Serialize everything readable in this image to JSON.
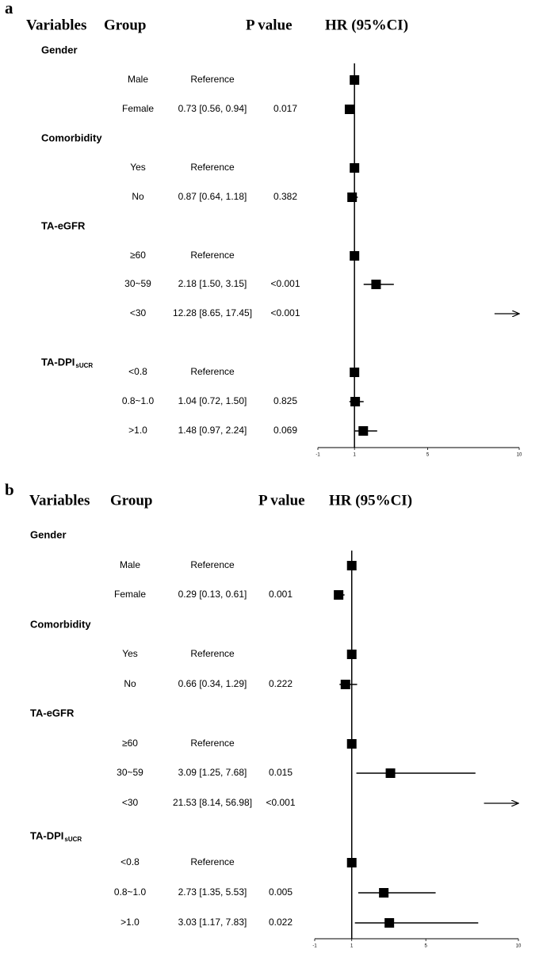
{
  "chart_data": [
    {
      "type": "forest",
      "panel": "a",
      "columns": [
        "Variables",
        "Group",
        "P value",
        "HR (95%CI)"
      ],
      "xlim": [
        -1,
        10
      ],
      "xticks": [
        -1,
        1,
        5,
        10
      ],
      "reference_value": 1,
      "groups": [
        {
          "name": "Gender",
          "rows": [
            {
              "group": "Male",
              "estimate": "Reference",
              "hr": 1
            },
            {
              "group": "Female",
              "estimate": "0.73 [0.56, 0.94]",
              "p": "0.017",
              "hr": 0.73,
              "lo": 0.56,
              "hi": 0.94
            }
          ]
        },
        {
          "name": "Comorbidity",
          "rows": [
            {
              "group": "Yes",
              "estimate": "Reference",
              "hr": 1
            },
            {
              "group": "No",
              "estimate": "0.87 [0.64, 1.18]",
              "p": "0.382",
              "hr": 0.87,
              "lo": 0.64,
              "hi": 1.18
            }
          ]
        },
        {
          "name": "TA-eGFR",
          "rows": [
            {
              "group": "≥60",
              "estimate": "Reference",
              "hr": 1
            },
            {
              "group": "30~59",
              "estimate": "2.18 [1.50, 3.15]",
              "p": "<0.001",
              "hr": 2.18,
              "lo": 1.5,
              "hi": 3.15
            },
            {
              "group": "<30",
              "estimate": "12.28 [8.65, 17.45]",
              "p": "<0.001",
              "hr": 12.28,
              "lo": 8.65,
              "hi": 17.45
            }
          ]
        },
        {
          "name": "TA-DPI",
          "subscript": "sUCR",
          "rows": [
            {
              "group": "<0.8",
              "estimate": "Reference",
              "hr": 1
            },
            {
              "group": "0.8~1.0",
              "estimate": "1.04 [0.72, 1.50]",
              "p": "0.825",
              "hr": 1.04,
              "lo": 0.72,
              "hi": 1.5
            },
            {
              "group": ">1.0",
              "estimate": "1.48 [0.97, 2.24]",
              "p": "0.069",
              "hr": 1.48,
              "lo": 0.97,
              "hi": 2.24
            }
          ]
        }
      ]
    },
    {
      "type": "forest",
      "panel": "b",
      "columns": [
        "Variables",
        "Group",
        "P value",
        "HR (95%CI)"
      ],
      "xlim": [
        -1,
        10
      ],
      "xticks": [
        -1,
        1,
        5,
        10
      ],
      "reference_value": 1,
      "groups": [
        {
          "name": "Gender",
          "rows": [
            {
              "group": "Male",
              "estimate": "Reference",
              "hr": 1
            },
            {
              "group": "Female",
              "estimate": "0.29 [0.13, 0.61]",
              "p": "0.001",
              "hr": 0.29,
              "lo": 0.13,
              "hi": 0.61
            }
          ]
        },
        {
          "name": "Comorbidity",
          "rows": [
            {
              "group": "Yes",
              "estimate": "Reference",
              "hr": 1
            },
            {
              "group": "No",
              "estimate": "0.66 [0.34, 1.29]",
              "p": "0.222",
              "hr": 0.66,
              "lo": 0.34,
              "hi": 1.29
            }
          ]
        },
        {
          "name": "TA-eGFR",
          "rows": [
            {
              "group": "≥60",
              "estimate": "Reference",
              "hr": 1
            },
            {
              "group": "30~59",
              "estimate": "3.09 [1.25, 7.68]",
              "p": "0.015",
              "hr": 3.09,
              "lo": 1.25,
              "hi": 7.68
            },
            {
              "group": "<30",
              "estimate": "21.53 [8.14, 56.98]",
              "p": "<0.001",
              "hr": 21.53,
              "lo": 8.14,
              "hi": 56.98
            }
          ]
        },
        {
          "name": "TA-DPI",
          "subscript": "sUCR",
          "rows": [
            {
              "group": "<0.8",
              "estimate": "Reference",
              "hr": 1
            },
            {
              "group": "0.8~1.0",
              "estimate": "2.73 [1.35, 5.53]",
              "p": "0.005",
              "hr": 2.73,
              "lo": 1.35,
              "hi": 5.53
            },
            {
              "group": ">1.0",
              "estimate": "3.03 [1.17, 7.83]",
              "p": "0.022",
              "hr": 3.03,
              "lo": 1.17,
              "hi": 7.83
            }
          ]
        }
      ]
    }
  ]
}
